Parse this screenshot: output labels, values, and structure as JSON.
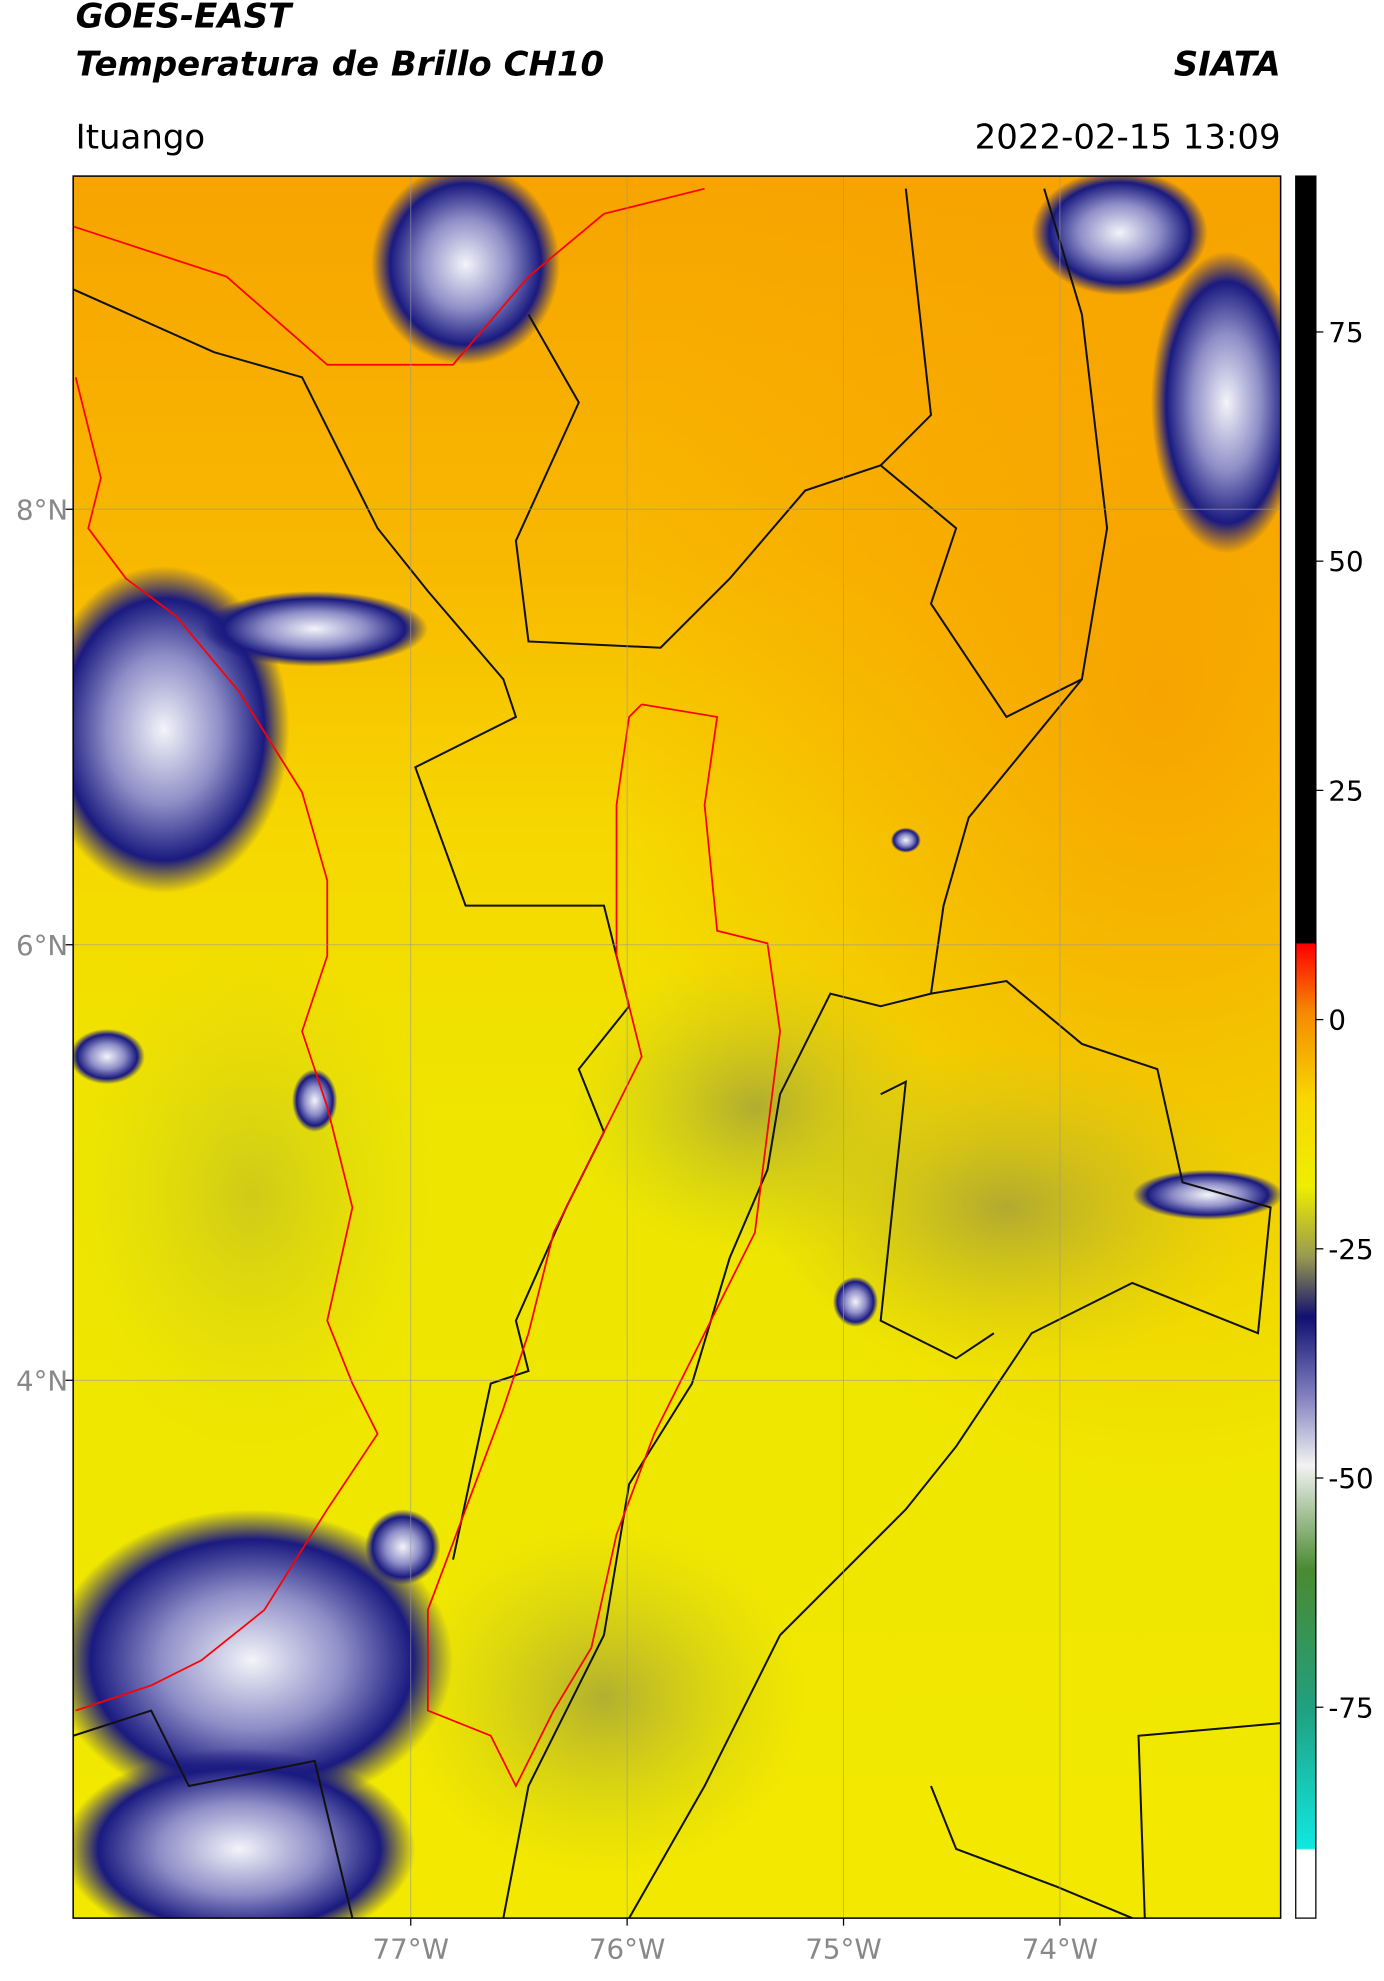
{
  "header": {
    "satellite": "GOES-EAST",
    "product": "Temperatura de Brillo CH10",
    "agency": "SIATA",
    "region": "Ituango",
    "datetime": "2022-02-15 13:09"
  },
  "map": {
    "type": "map",
    "xlim": [
      -78.56,
      -72.98
    ],
    "ylim": [
      1.53,
      9.53
    ],
    "xticks": [
      {
        "value": -77,
        "label": "77°W"
      },
      {
        "value": -76,
        "label": "76°W"
      },
      {
        "value": -75,
        "label": "75°W"
      },
      {
        "value": -74,
        "label": "74°W"
      }
    ],
    "yticks": [
      {
        "value": 8,
        "label": "8°N"
      },
      {
        "value": 6,
        "label": "6°N"
      },
      {
        "value": 4,
        "label": "4°N"
      }
    ],
    "grid": true
  },
  "colorbar": {
    "lim": [
      -98,
      92
    ],
    "ticks": [
      75,
      50,
      25,
      0,
      -25,
      -50,
      -75
    ]
  }
}
